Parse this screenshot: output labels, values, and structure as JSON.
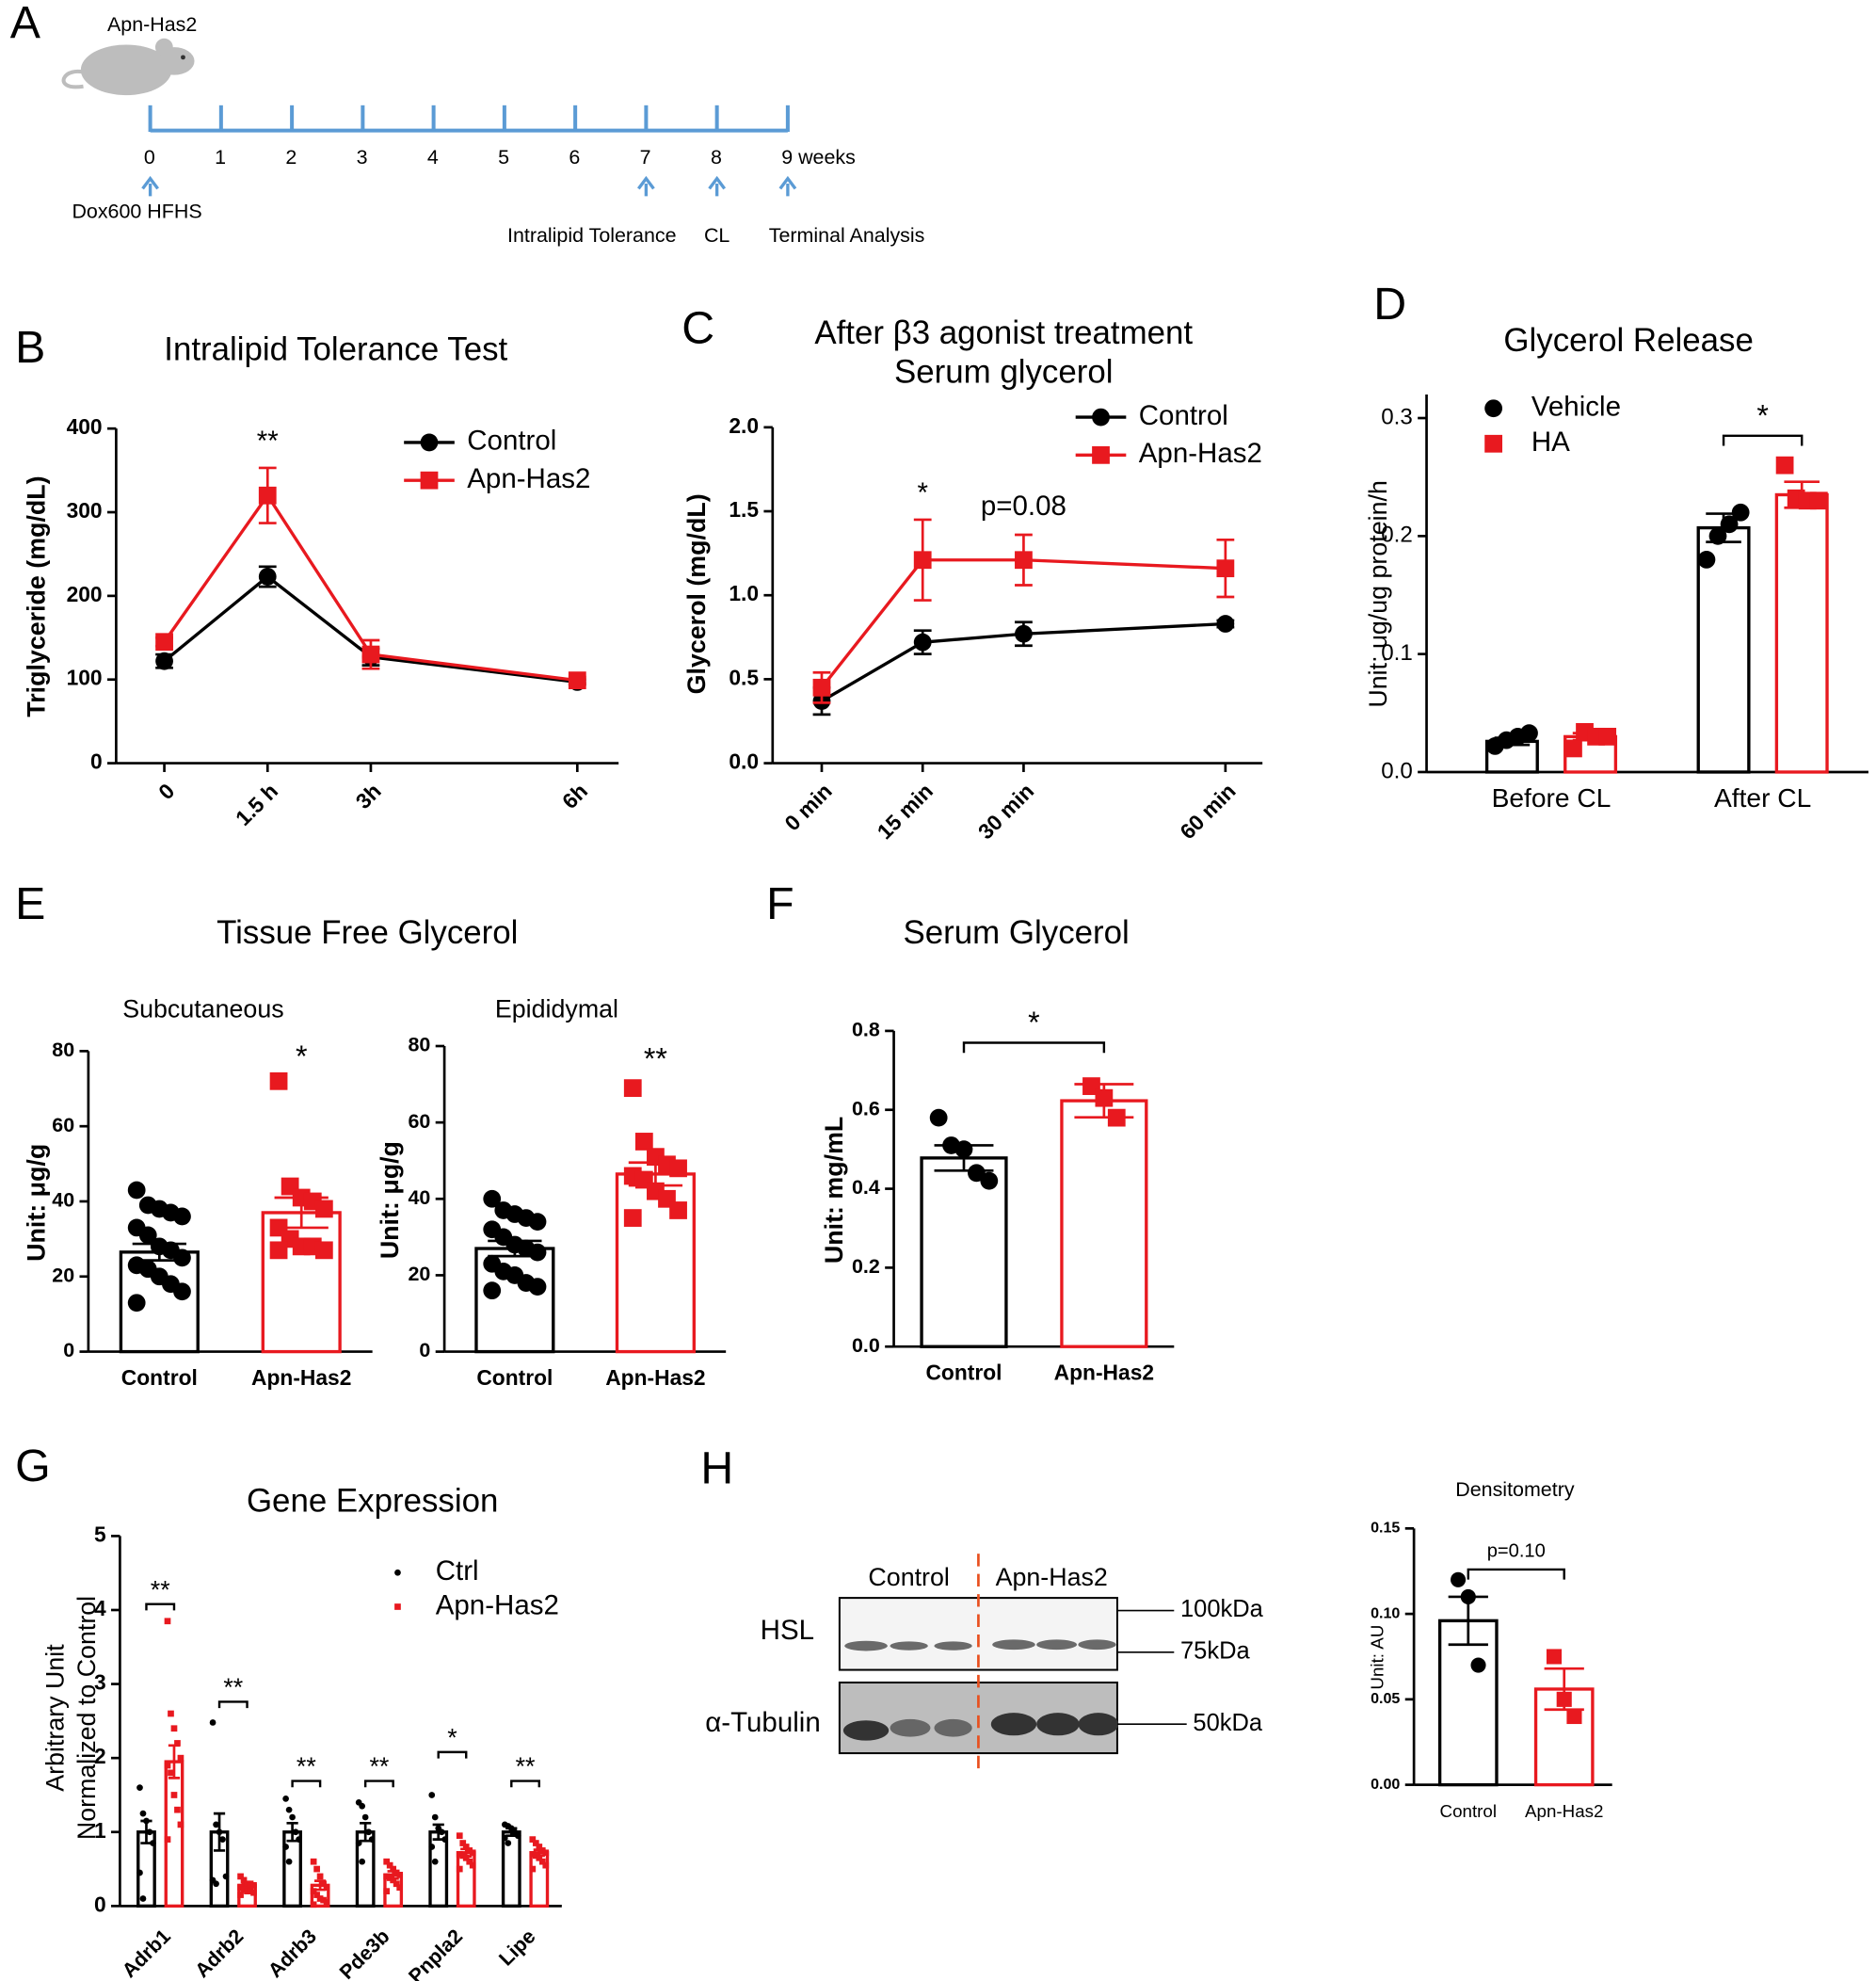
{
  "chart_data": [
    {
      "type": "timeline",
      "panel": "A",
      "label": "Apn-Has2",
      "xlim": [
        0,
        9
      ],
      "ticks": [
        0,
        1,
        2,
        3,
        4,
        5,
        6,
        7,
        8,
        {
          "value": 9,
          "label": "9 weeks"
        }
      ],
      "annotations": [
        {
          "text": "Dox600 HFHS",
          "x": 0
        },
        {
          "text": "Intralipid Tolerance",
          "x": 7
        },
        {
          "text": "CL",
          "x": 8
        },
        {
          "text": "Terminal Analysis",
          "x": 9
        }
      ],
      "color": "#5b9bd5"
    },
    {
      "type": "line",
      "panel": "B",
      "title": "Intralipid Tolerance Test",
      "ylabel": "Triglyceride (mg/dL)",
      "x": [
        0,
        1.5,
        3,
        6
      ],
      "xlim": [
        -0.7,
        6.6
      ],
      "xticks": [
        0,
        {
          "value": 1.5,
          "label": "1.5 h"
        },
        {
          "value": 3,
          "label": "3h"
        },
        {
          "value": 6,
          "label": "6h"
        }
      ],
      "ylim": [
        0,
        400
      ],
      "yticks": [
        0,
        100,
        200,
        300,
        400
      ],
      "series": [
        {
          "name": "Control",
          "color": "#000000",
          "marker": "circle",
          "values": [
            122,
            223,
            127,
            97
          ],
          "errors": [
            8,
            12,
            10,
            3
          ]
        },
        {
          "name": "Apn-Has2",
          "color": "#e8191f",
          "marker": "square",
          "values": [
            145,
            320,
            130,
            99
          ],
          "errors": [
            5,
            33,
            17,
            4
          ]
        }
      ],
      "annotations": [
        {
          "text": "**",
          "x": 1.5,
          "y": 383
        }
      ]
    },
    {
      "type": "line",
      "panel": "C",
      "title": "After β3 agonist treatment",
      "subtitle": "Serum glycerol",
      "ylabel": "Glycerol (mg/dL)",
      "x": [
        0,
        15,
        30,
        60
      ],
      "xlim": [
        -7.3,
        65.5
      ],
      "xticks": [
        {
          "value": 0,
          "label": "0 min"
        },
        {
          "value": 15,
          "label": "15 min"
        },
        {
          "value": 30,
          "label": "30 min"
        },
        {
          "value": 60,
          "label": "60 min"
        }
      ],
      "ylim": [
        0,
        2.0
      ],
      "yticks": [
        {
          "value": 0,
          "label": "0.0"
        },
        {
          "value": 0.5,
          "label": "0.5"
        },
        {
          "value": 1.0,
          "label": "1.0"
        },
        {
          "value": 1.5,
          "label": "1.5"
        },
        {
          "value": 2.0,
          "label": "2.0"
        }
      ],
      "series": [
        {
          "name": "Control",
          "color": "#000000",
          "marker": "circle",
          "values": [
            0.37,
            0.72,
            0.77,
            0.83
          ],
          "errors": [
            0.08,
            0.07,
            0.07,
            0.02
          ]
        },
        {
          "name": "Apn-Has2",
          "color": "#e8191f",
          "marker": "square",
          "values": [
            0.45,
            1.21,
            1.21,
            1.16
          ],
          "errors": [
            0.09,
            0.24,
            0.15,
            0.17
          ]
        }
      ],
      "annotations": [
        {
          "text": "*",
          "x": 15,
          "y": 1.6
        },
        {
          "text": "p=0.08",
          "x": 30,
          "y": 1.52
        }
      ]
    },
    {
      "type": "bar",
      "panel": "D",
      "title": "Glycerol Release",
      "ylabel": "Unit: ug/ug protein/h",
      "categories": [
        "Before CL",
        "After CL"
      ],
      "ylim": [
        0,
        0.32
      ],
      "yticks": [
        {
          "value": 0,
          "label": "0.0"
        },
        {
          "value": 0.1,
          "label": "0.1"
        },
        {
          "value": 0.2,
          "label": "0.2"
        },
        {
          "value": 0.3,
          "label": "0.3"
        }
      ],
      "series": [
        {
          "name": "Vehicle",
          "color": "#000000",
          "marker": "circle",
          "values": [
            0.026,
            0.207
          ],
          "errors": [
            0.003,
            0.012
          ],
          "points": [
            [
              0.022,
              0.027,
              0.03,
              0.033
            ],
            [
              0.18,
              0.2,
              0.21,
              0.22
            ]
          ]
        },
        {
          "name": "HA",
          "color": "#e8191f",
          "marker": "square",
          "values": [
            0.03,
            0.235
          ],
          "errors": [
            0.003,
            0.011
          ],
          "points": [
            [
              0.02,
              0.034,
              0.03,
              0.03
            ],
            [
              0.26,
              0.232,
              0.23,
              0.23
            ]
          ]
        }
      ],
      "annotations": [
        {
          "text": "*",
          "x": "After CL",
          "y": 0.285
        }
      ]
    },
    {
      "type": "bar",
      "panel": "E",
      "group_title": "Tissue Free Glycerol",
      "title": "Subcutaneous",
      "ylabel": "Unit: μg/g",
      "categories": [
        "Control",
        "Apn-Has2"
      ],
      "ylim": [
        0,
        80
      ],
      "yticks": [
        0,
        20,
        40,
        60,
        80
      ],
      "colors": [
        "#000000",
        "#e8191f"
      ],
      "markers": [
        "circle",
        "square"
      ],
      "values": [
        26.5,
        37
      ],
      "errors": [
        2.2,
        4
      ],
      "points": [
        [
          43,
          39,
          38,
          37,
          36,
          33,
          31,
          28,
          27,
          25,
          23,
          22,
          20,
          18,
          16,
          13
        ],
        [
          72,
          44,
          41,
          40,
          38,
          33,
          30,
          28,
          28,
          27,
          27
        ]
      ],
      "annotations": [
        {
          "text": "*",
          "x": "Apn-Has2",
          "y": 78,
          "color": "#e8191f"
        }
      ]
    },
    {
      "type": "bar",
      "title": "Epididymal",
      "ylabel": "Unit: μg/g",
      "categories": [
        "Control",
        "Apn-Has2"
      ],
      "ylim": [
        0,
        80
      ],
      "yticks": [
        0,
        20,
        40,
        60,
        80
      ],
      "colors": [
        "#000000",
        "#e8191f"
      ],
      "markers": [
        "circle",
        "square"
      ],
      "values": [
        27,
        46.5
      ],
      "errors": [
        2,
        3
      ],
      "points": [
        [
          40,
          37,
          36,
          35,
          34,
          32,
          30,
          28,
          27,
          26,
          23,
          21,
          20,
          18,
          17,
          16
        ],
        [
          69,
          55,
          51,
          49,
          48,
          46,
          45,
          42,
          40,
          37,
          35
        ]
      ],
      "annotations": [
        {
          "text": "**",
          "x": "Apn-Has2",
          "y": 76,
          "color": "#e8191f"
        }
      ]
    },
    {
      "type": "bar",
      "panel": "F",
      "title": "Serum Glycerol",
      "ylabel": "Unit: mg/mL",
      "categories": [
        "Control",
        "Apn-Has2"
      ],
      "ylim": [
        0,
        0.8
      ],
      "yticks": [
        {
          "value": 0,
          "label": "0.0"
        },
        {
          "value": 0.2,
          "label": "0.2"
        },
        {
          "value": 0.4,
          "label": "0.4"
        },
        {
          "value": 0.6,
          "label": "0.6"
        },
        {
          "value": 0.8,
          "label": "0.8"
        }
      ],
      "colors": [
        "#000000",
        "#e8191f"
      ],
      "markers": [
        "circle",
        "square"
      ],
      "values": [
        0.478,
        0.623
      ],
      "errors": [
        0.032,
        0.042
      ],
      "points": [
        [
          0.58,
          0.51,
          0.5,
          0.44,
          0.42
        ],
        [
          0.66,
          0.63,
          0.58
        ]
      ],
      "annotations": [
        {
          "text": "*",
          "y": 0.77
        }
      ]
    },
    {
      "type": "bar",
      "panel": "G",
      "title": "Gene Expression",
      "ylabel": [
        "Arbitrary Unit",
        "Normalized to Control"
      ],
      "categories": [
        "Adrb1",
        "Adrb2",
        "Adrb3",
        "Pde3b",
        "Pnpla2",
        "Lipe"
      ],
      "ylim": [
        0,
        5
      ],
      "yticks": [
        0,
        1,
        2,
        3,
        4,
        5
      ],
      "series": [
        {
          "name": "Ctrl",
          "color": "#000000",
          "marker": "circle",
          "values": [
            1,
            1,
            1,
            1,
            1,
            1
          ],
          "errors": [
            0.15,
            0.25,
            0.12,
            0.12,
            0.1,
            0.05
          ],
          "points": [
            [
              1.6,
              1.25,
              1.15,
              1.0,
              0.85,
              0.45,
              0.1
            ],
            [
              2.48,
              1.1,
              1.0,
              0.9,
              0.4,
              0.35,
              0.3
            ],
            [
              1.45,
              1.3,
              1.2,
              1.0,
              0.9,
              0.8,
              0.6
            ],
            [
              1.4,
              1.35,
              1.2,
              1.0,
              0.9,
              0.85,
              0.6
            ],
            [
              1.5,
              1.2,
              1.05,
              1.0,
              0.9,
              0.8,
              0.6
            ],
            [
              1.1,
              1.08,
              1.05,
              1.0,
              0.95,
              0.92,
              0.85
            ]
          ]
        },
        {
          "name": "Apn-Has2",
          "color": "#e8191f",
          "marker": "square",
          "values": [
            1.95,
            0.28,
            0.28,
            0.42,
            0.72,
            0.72
          ],
          "errors": [
            0.22,
            0.03,
            0.06,
            0.05,
            0.05,
            0.04
          ],
          "points": [
            [
              3.85,
              2.6,
              2.4,
              2.2,
              2.0,
              1.9,
              1.8,
              1.5,
              1.3,
              1.1,
              0.9
            ],
            [
              0.4,
              0.35,
              0.3,
              0.3,
              0.28,
              0.25,
              0.22,
              0.2,
              0.2,
              0.18,
              0.15
            ],
            [
              0.6,
              0.5,
              0.4,
              0.3,
              0.25,
              0.2,
              0.15,
              0.1,
              0.08,
              0.05,
              0.02
            ],
            [
              0.6,
              0.55,
              0.5,
              0.45,
              0.42,
              0.4,
              0.38,
              0.35,
              0.3,
              0.25,
              0.2
            ],
            [
              0.95,
              0.85,
              0.8,
              0.75,
              0.72,
              0.7,
              0.68,
              0.65,
              0.6,
              0.55,
              0.5
            ],
            [
              0.9,
              0.85,
              0.8,
              0.75,
              0.72,
              0.7,
              0.68,
              0.65,
              0.6,
              0.55,
              0.5
            ]
          ]
        }
      ],
      "annotations": [
        {
          "text": "**",
          "x": "Adrb1",
          "y": 4.08
        },
        {
          "text": "**",
          "x": "Adrb2",
          "y": 2.76
        },
        {
          "text": "**",
          "x": "Adrb3",
          "y": 1.69
        },
        {
          "text": "**",
          "x": "Pde3b",
          "y": 1.69
        },
        {
          "text": "*",
          "x": "Pnpla2",
          "y": 2.08
        },
        {
          "text": "**",
          "x": "Lipe",
          "y": 1.69
        }
      ]
    },
    {
      "type": "blot",
      "panel": "H",
      "lanes": [
        "Control",
        "Apn-Has2"
      ],
      "proteins": [
        "HSL",
        "α-Tubulin"
      ],
      "markers": [
        "100kDa",
        "75kDa",
        "50kDa"
      ]
    },
    {
      "type": "bar",
      "title": "Densitometry",
      "ylabel": "Unit: AU",
      "categories": [
        "Control",
        "Apn-Has2"
      ],
      "ylim": [
        0,
        0.15
      ],
      "yticks": [
        {
          "value": 0,
          "label": "0.00"
        },
        {
          "value": 0.05,
          "label": "0.05"
        },
        {
          "value": 0.1,
          "label": "0.10"
        },
        {
          "value": 0.15,
          "label": "0.15"
        }
      ],
      "colors": [
        "#000000",
        "#e8191f"
      ],
      "markers": [
        "circle",
        "square"
      ],
      "values": [
        0.096,
        0.056
      ],
      "errors": [
        0.014,
        0.012
      ],
      "points": [
        [
          0.12,
          0.11,
          0.07
        ],
        [
          0.075,
          0.05,
          0.04
        ]
      ],
      "annotations": [
        {
          "text": "p=0.10",
          "y": 0.126
        }
      ]
    }
  ]
}
